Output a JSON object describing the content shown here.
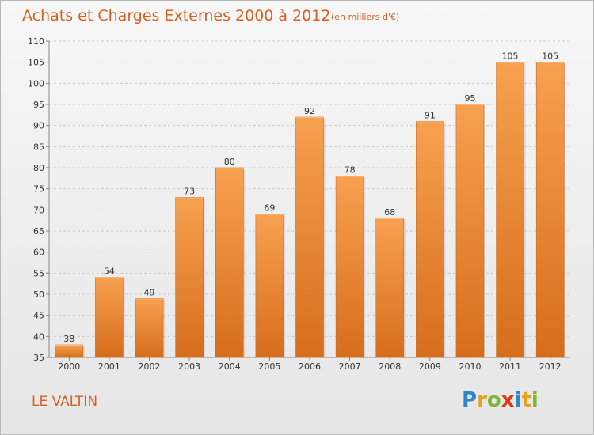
{
  "header": {
    "title": "Achats et Charges Externes 2000 à 2012",
    "subtitle": "(en milliers d'€)"
  },
  "footer": {
    "commune": "LE VALTIN",
    "logo_letters": [
      {
        "char": "P",
        "color": "#2f86c9"
      },
      {
        "char": "r",
        "color": "#e8a11c"
      },
      {
        "char": "o",
        "color": "#7fb737"
      },
      {
        "char": "x",
        "color": "#e0381f"
      },
      {
        "char": "i",
        "color": "#2f86c9"
      },
      {
        "char": "t",
        "color": "#e8a11c"
      },
      {
        "char": "i",
        "color": "#7fb737"
      }
    ]
  },
  "chart_data": {
    "type": "bar",
    "title": "Achats et Charges Externes 2000 à 2012",
    "subtitle": "(en milliers d'€)",
    "categories": [
      "2000",
      "2001",
      "2002",
      "2003",
      "2004",
      "2005",
      "2006",
      "2007",
      "2008",
      "2009",
      "2010",
      "2011",
      "2012"
    ],
    "values": [
      38,
      54,
      49,
      73,
      80,
      69,
      92,
      78,
      68,
      91,
      95,
      105,
      105
    ],
    "ylim": [
      35,
      110
    ],
    "yticks": [
      35,
      40,
      45,
      50,
      55,
      60,
      65,
      70,
      75,
      80,
      85,
      90,
      95,
      100,
      105,
      110
    ],
    "grid": true,
    "bar_color": "#f0913f",
    "bar_color_dark": "#d7701f"
  }
}
